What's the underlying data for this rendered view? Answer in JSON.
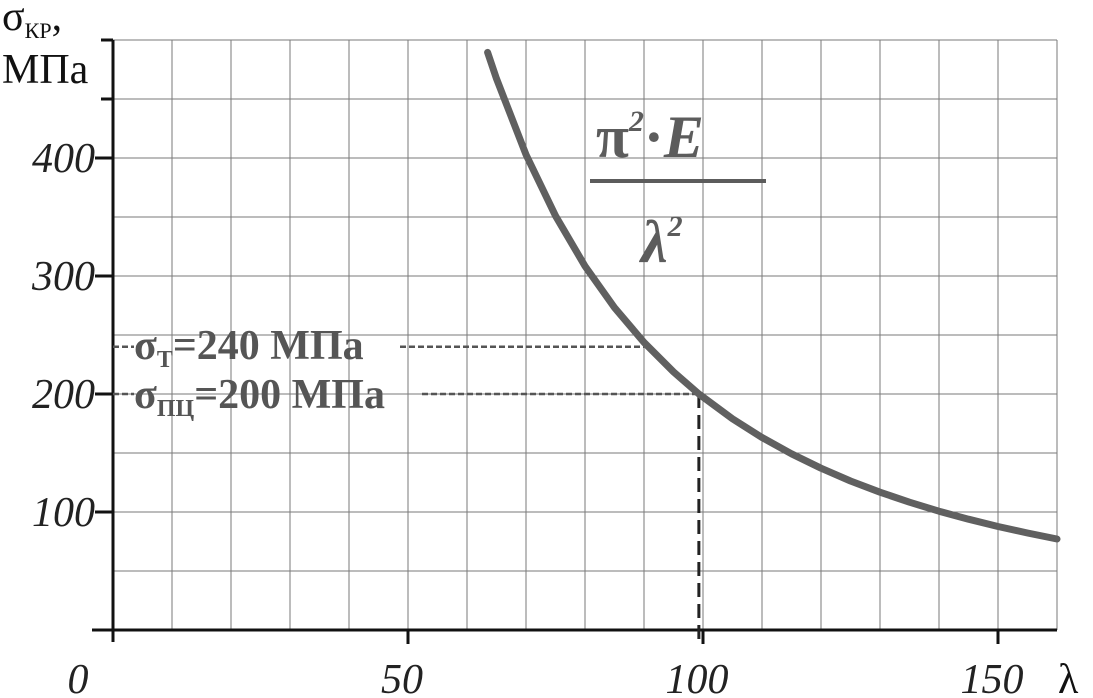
{
  "chart_data": {
    "type": "line",
    "ylabel_symbol": "σ",
    "ylabel_sub": "КР",
    "ylabel_sep": ",",
    "ylabel_unit": "МПа",
    "xlabel": "λ",
    "x_ticks": [
      "0",
      "50",
      "100",
      "150"
    ],
    "y_ticks": [
      "100",
      "200",
      "300",
      "400"
    ],
    "xlim": [
      0,
      160
    ],
    "ylim": [
      0,
      500
    ],
    "grid": true,
    "series": [
      {
        "color": "#606060",
        "x": [
          63.5,
          65,
          70,
          75,
          80,
          85,
          90,
          95,
          99.3,
          105,
          110,
          115,
          120,
          125,
          130,
          135,
          140,
          145,
          150,
          155,
          160
        ],
        "y": [
          489.5,
          467.2,
          402.9,
          351.0,
          308.4,
          273.2,
          243.7,
          218.7,
          200.0,
          179.0,
          163.1,
          149.3,
          137.1,
          126.3,
          116.8,
          108.3,
          100.7,
          93.9,
          87.7,
          82.2,
          77.1
        ]
      }
    ],
    "formula": {
      "numerator": "π",
      "numerator_sup": "2",
      "dot": "·",
      "numerator_var": "E",
      "denominator": "λ",
      "denominator_sup": "2"
    },
    "annotations": [
      {
        "symbol": "σ",
        "sub": "Т",
        "text": "=240 МПа",
        "y": 240,
        "x_end": 90
      },
      {
        "symbol": "σ",
        "sub": "ПЦ",
        "text": "=200 МПа",
        "y": 200,
        "x_end": 99.3
      }
    ],
    "vline": {
      "x": 99.3,
      "y_top": 200
    },
    "colors": {
      "curve": "#606060",
      "grid": "#7a7a7a",
      "axis": "#111111",
      "annotation": "#555555"
    }
  }
}
